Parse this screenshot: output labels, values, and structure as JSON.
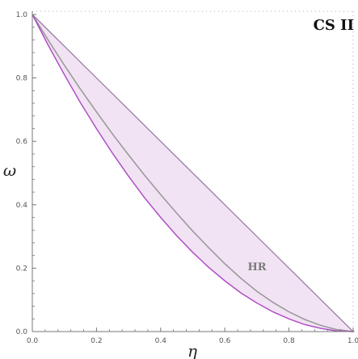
{
  "chart_data": {
    "type": "area",
    "title": "",
    "panel_label": "CS II",
    "xlabel": "η",
    "ylabel": "ω",
    "xlim": [
      0,
      1
    ],
    "ylim": [
      0,
      1
    ],
    "x_ticks": [
      "0.0",
      "0.2",
      "0.4",
      "0.6",
      "0.8",
      "1.0"
    ],
    "y_ticks": [
      "0.0",
      "0.2",
      "0.4",
      "0.6",
      "0.8",
      "1.0"
    ],
    "grid": false,
    "colors": {
      "fill": "#f1e3f3",
      "upper_edge": "#9b7fa6",
      "lower_edge": "#b04ec4",
      "middle_curve": "#9a9a9a",
      "axis": "#777777"
    },
    "series": [
      {
        "role": "upper-bound",
        "x": [
          0.0,
          0.25,
          0.5,
          0.75,
          1.0
        ],
        "y": [
          1.0,
          0.75,
          0.5,
          0.25,
          0.0
        ]
      },
      {
        "role": "middle-curve",
        "name": "HR",
        "x": [
          0.0,
          0.05,
          0.1,
          0.15,
          0.2,
          0.25,
          0.3,
          0.35,
          0.4,
          0.45,
          0.5,
          0.55,
          0.6,
          0.65,
          0.7,
          0.75,
          0.8,
          0.85,
          0.9,
          0.95,
          1.0
        ],
        "y": [
          1.0,
          0.918,
          0.84,
          0.765,
          0.693,
          0.623,
          0.557,
          0.493,
          0.432,
          0.373,
          0.317,
          0.264,
          0.214,
          0.168,
          0.127,
          0.092,
          0.062,
          0.038,
          0.019,
          0.006,
          0.0
        ]
      },
      {
        "role": "lower-bound",
        "x": [
          0.0,
          0.05,
          0.1,
          0.15,
          0.2,
          0.25,
          0.3,
          0.35,
          0.4,
          0.45,
          0.5,
          0.55,
          0.6,
          0.65,
          0.7,
          0.75,
          0.8,
          0.85,
          0.9,
          0.95,
          1.0
        ],
        "y": [
          1.0,
          0.902,
          0.81,
          0.722,
          0.64,
          0.562,
          0.49,
          0.422,
          0.36,
          0.302,
          0.25,
          0.202,
          0.16,
          0.122,
          0.09,
          0.062,
          0.04,
          0.022,
          0.01,
          0.002,
          0.0
        ]
      }
    ]
  }
}
